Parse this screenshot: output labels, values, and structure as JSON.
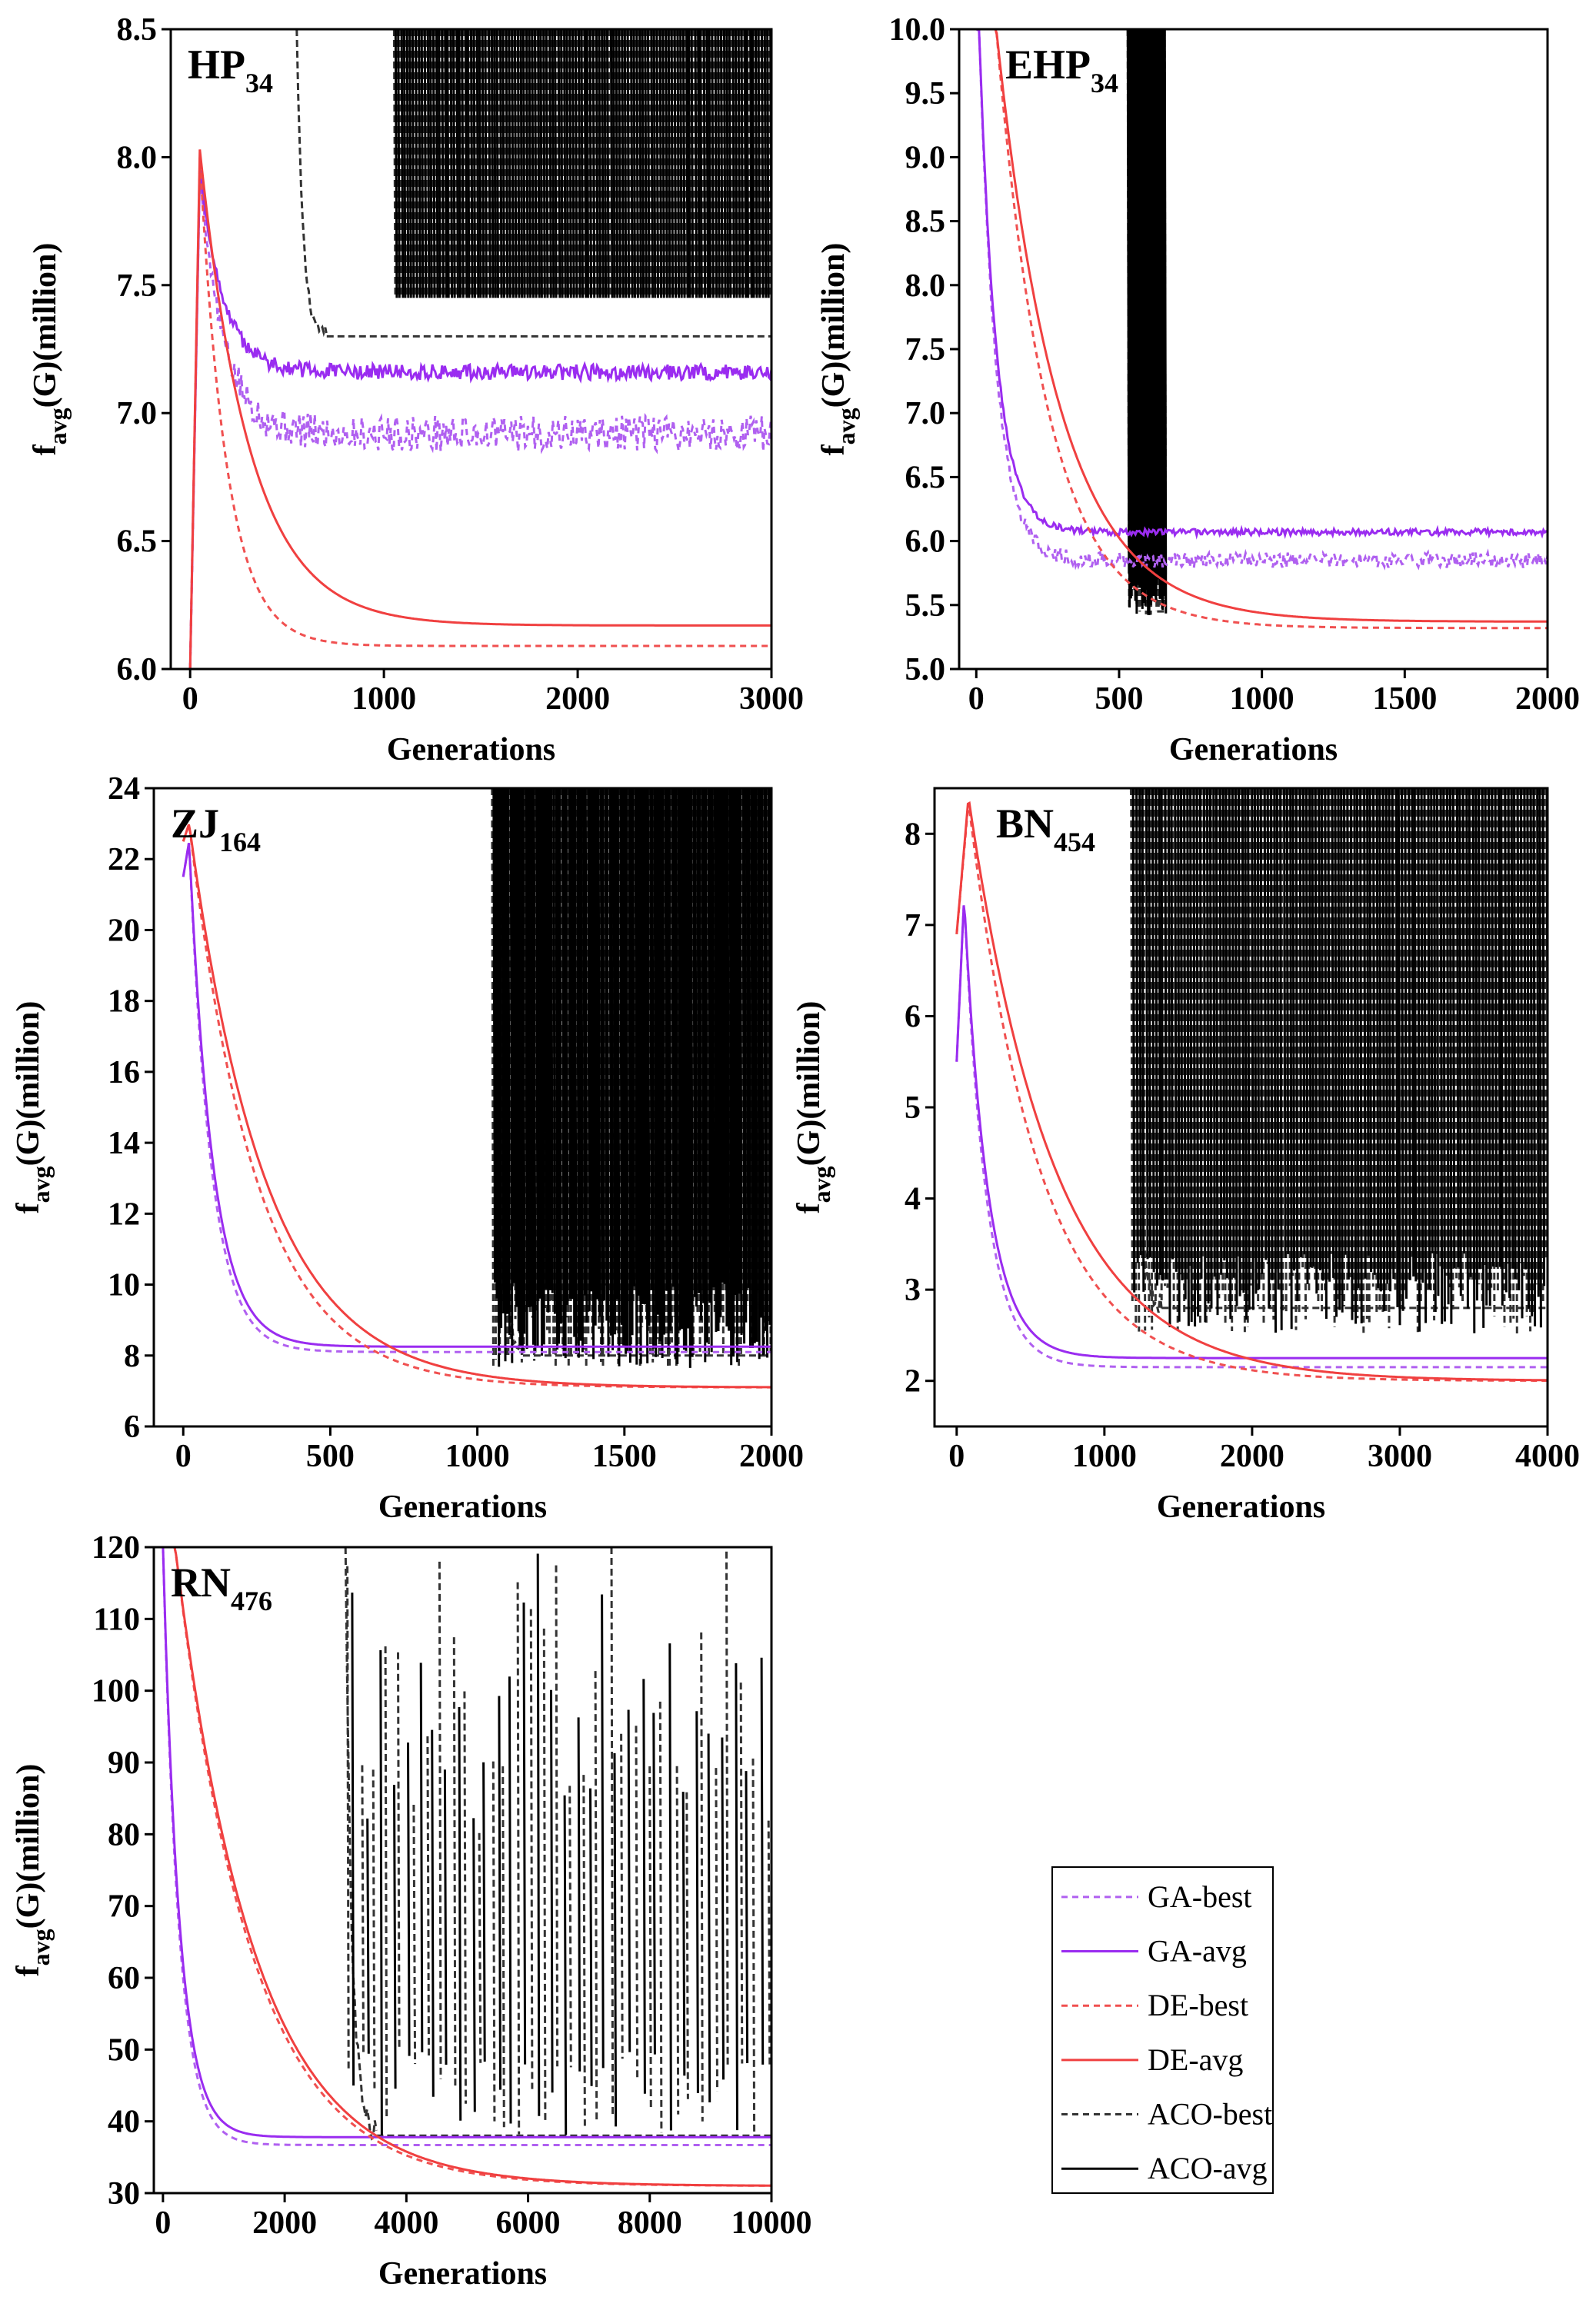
{
  "legend": [
    {
      "name": "GA-best",
      "color": "#b060f0",
      "dash": true
    },
    {
      "name": "GA-avg",
      "color": "#9a2cf0",
      "dash": false
    },
    {
      "name": "DE-best",
      "color": "#f05050",
      "dash": true
    },
    {
      "name": "DE-avg",
      "color": "#f04040",
      "dash": false
    },
    {
      "name": "ACO-best",
      "color": "#333333",
      "dash": true
    },
    {
      "name": "ACO-avg",
      "color": "#000000",
      "dash": false
    }
  ],
  "chart_data": [
    {
      "type": "line",
      "panel_label": "HP",
      "panel_sub": "34",
      "xlabel": "Generations",
      "ylabel_main": "f",
      "ylabel_sub": "avg",
      "ylabel_rest": "(G)(million)",
      "xlim": [
        -100,
        3000
      ],
      "ylim": [
        6.0,
        8.5
      ],
      "xticks": [
        0,
        1000,
        2000,
        3000
      ],
      "yticks": [
        6.0,
        6.5,
        7.0,
        7.5,
        8.0,
        8.5
      ],
      "ytick_decimals": 1,
      "series": [
        {
          "name": "GA-best",
          "start": 6.0,
          "peak_x": 50,
          "peak": 7.95,
          "final": 6.92,
          "tau": 120,
          "noise": 0.07
        },
        {
          "name": "GA-avg",
          "start": 6.0,
          "peak_x": 50,
          "peak": 7.95,
          "final": 7.16,
          "tau": 120,
          "noise": 0.03
        },
        {
          "name": "DE-best",
          "start": 6.0,
          "peak_x": 50,
          "peak": 8.0,
          "final": 6.09,
          "tau": 140,
          "noise": 0
        },
        {
          "name": "DE-avg",
          "start": 6.0,
          "peak_x": 50,
          "peak": 8.03,
          "final": 6.17,
          "tau": 260,
          "noise": 0
        }
      ],
      "aco": {
        "start_x": 550,
        "start_y": 8.5,
        "floor": 7.22,
        "plateau": 7.3,
        "spikes_from": 1050,
        "spike_low": 7.45,
        "spike_high": 8.5,
        "density": 1.0
      }
    },
    {
      "type": "line",
      "panel_label": "EHP",
      "panel_sub": "34",
      "xlabel": "Generations",
      "ylabel_main": "f",
      "ylabel_sub": "avg",
      "ylabel_rest": "(G)(million)",
      "xlim": [
        -60,
        2000
      ],
      "ylim": [
        5.0,
        10.0
      ],
      "xticks": [
        0,
        500,
        1000,
        1500,
        2000
      ],
      "yticks": [
        5.0,
        5.5,
        6.0,
        6.5,
        7.0,
        7.5,
        8.0,
        8.5,
        9.0,
        9.5,
        10.0
      ],
      "ytick_decimals": 1,
      "series": [
        {
          "name": "GA-best",
          "start": 10.0,
          "peak_x": 10,
          "peak": 10.0,
          "final": 5.85,
          "tau": 60,
          "noise": 0.06
        },
        {
          "name": "GA-avg",
          "start": 10.0,
          "peak_x": 10,
          "peak": 10.0,
          "final": 6.07,
          "tau": 60,
          "noise": 0.025
        },
        {
          "name": "DE-best",
          "start": 10.0,
          "peak_x": 70,
          "peak": 10.0,
          "final": 5.32,
          "tau": 180,
          "noise": 0
        },
        {
          "name": "DE-avg",
          "start": 10.0,
          "peak_x": 70,
          "peak": 10.0,
          "final": 5.37,
          "tau": 220,
          "noise": 0
        }
      ],
      "aco": {
        "start_x": 530,
        "start_y": 10.0,
        "floor": 5.42,
        "plateau": 5.45,
        "spikes_from": 530,
        "spike_low": 5.42,
        "spike_high": 10.0,
        "spikes_to": 660,
        "density": 1.0
      }
    },
    {
      "type": "line",
      "panel_label": "ZJ",
      "panel_sub": "164",
      "xlabel": "Generations",
      "ylabel_main": "f",
      "ylabel_sub": "avg",
      "ylabel_rest": "(G)(million)",
      "xlim": [
        -100,
        2000
      ],
      "ylim": [
        6,
        24
      ],
      "xticks": [
        0,
        500,
        1000,
        1500,
        2000
      ],
      "yticks": [
        6,
        8,
        10,
        12,
        14,
        16,
        18,
        20,
        22,
        24
      ],
      "ytick_decimals": 0,
      "series": [
        {
          "name": "GA-best",
          "start": 21.5,
          "peak_x": 20,
          "peak": 22.5,
          "final": 8.1,
          "tau": 75,
          "noise": 0
        },
        {
          "name": "GA-avg",
          "start": 21.5,
          "peak_x": 20,
          "peak": 22.5,
          "final": 8.25,
          "tau": 80,
          "noise": 0
        },
        {
          "name": "DE-best",
          "start": 22.5,
          "peak_x": 20,
          "peak": 23.0,
          "final": 7.1,
          "tau": 230,
          "noise": 0
        },
        {
          "name": "DE-avg",
          "start": 22.5,
          "peak_x": 20,
          "peak": 23.0,
          "final": 7.1,
          "tau": 260,
          "noise": 0
        }
      ],
      "aco": {
        "start_x": 1050,
        "start_y": 24,
        "floor": 7.6,
        "plateau": 8.0,
        "spikes_from": 1050,
        "spike_low": 7.6,
        "spike_high": 24,
        "density": 1.0
      }
    },
    {
      "type": "line",
      "panel_label": "BN",
      "panel_sub": "454",
      "xlabel": "Generations",
      "ylabel_main": "f",
      "ylabel_sub": "avg",
      "ylabel_rest": "(G)(million)",
      "xlim": [
        -150,
        4000
      ],
      "ylim": [
        1.5,
        8.5
      ],
      "xticks": [
        0,
        1000,
        2000,
        3000,
        4000
      ],
      "yticks": [
        2,
        3,
        4,
        5,
        6,
        7,
        8
      ],
      "ytick_decimals": 0,
      "series": [
        {
          "name": "GA-best",
          "start": 5.5,
          "peak_x": 50,
          "peak": 7.3,
          "final": 2.15,
          "tau": 150,
          "noise": 0
        },
        {
          "name": "GA-avg",
          "start": 5.5,
          "peak_x": 50,
          "peak": 7.3,
          "final": 2.25,
          "tau": 160,
          "noise": 0
        },
        {
          "name": "DE-best",
          "start": 6.9,
          "peak_x": 80,
          "peak": 8.35,
          "final": 2.0,
          "tau": 480,
          "noise": 0
        },
        {
          "name": "DE-avg",
          "start": 6.9,
          "peak_x": 80,
          "peak": 8.4,
          "final": 2.0,
          "tau": 580,
          "noise": 0
        }
      ],
      "aco": {
        "start_x": 1180,
        "start_y": 8.5,
        "floor": 2.5,
        "plateau": 2.8,
        "spikes_from": 1180,
        "spike_low": 2.5,
        "spike_high": 8.5,
        "density": 1.0
      }
    },
    {
      "type": "line",
      "panel_label": "RN",
      "panel_sub": "476",
      "xlabel": "Generations",
      "ylabel_main": "f",
      "ylabel_sub": "avg",
      "ylabel_rest": "(G)(million)",
      "xlim": [
        -150,
        10000
      ],
      "ylim": [
        30,
        120
      ],
      "xticks": [
        0,
        2000,
        4000,
        6000,
        8000,
        10000
      ],
      "yticks": [
        30,
        40,
        50,
        60,
        70,
        80,
        90,
        100,
        110,
        120
      ],
      "ytick_decimals": 0,
      "series": [
        {
          "name": "GA-best",
          "start": 120,
          "peak_x": 0,
          "peak": 120,
          "final": 36.7,
          "tau": 260,
          "noise": 0
        },
        {
          "name": "GA-avg",
          "start": 120,
          "peak_x": 0,
          "peak": 120,
          "final": 37.8,
          "tau": 270,
          "noise": 0
        },
        {
          "name": "DE-best",
          "start": 120,
          "peak_x": 200,
          "peak": 120,
          "final": 31.0,
          "tau": 1250,
          "noise": 0
        },
        {
          "name": "DE-avg",
          "start": 120,
          "peak_x": 200,
          "peak": 120,
          "final": 31.0,
          "tau": 1300,
          "noise": 0
        }
      ],
      "aco": {
        "start_x": 3000,
        "start_y": 120,
        "floor": 38,
        "plateau": 38,
        "spikes_from": 3000,
        "spike_low": 38,
        "spike_high": 120,
        "density": 0.25
      }
    }
  ]
}
